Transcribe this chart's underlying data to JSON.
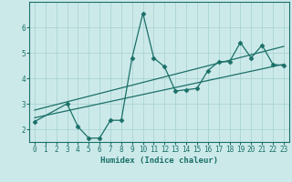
{
  "xlabel": "Humidex (Indice chaleur)",
  "xlim": [
    -0.5,
    23.5
  ],
  "ylim": [
    1.5,
    7.0
  ],
  "yticks": [
    2,
    3,
    4,
    5,
    6
  ],
  "xticks": [
    0,
    1,
    2,
    3,
    4,
    5,
    6,
    7,
    8,
    9,
    10,
    11,
    12,
    13,
    14,
    15,
    16,
    17,
    18,
    19,
    20,
    21,
    22,
    23
  ],
  "bg_color": "#cce9e9",
  "line_color": "#1a7068",
  "grid_color": "#aad4d4",
  "line1_x": [
    0,
    3,
    4,
    5,
    6,
    7,
    8,
    9,
    10,
    11,
    12,
    13,
    14,
    15,
    16,
    17,
    18,
    19,
    20,
    21,
    22,
    23
  ],
  "line1_y": [
    2.3,
    3.0,
    2.1,
    1.65,
    1.65,
    2.35,
    2.35,
    4.8,
    6.55,
    4.8,
    4.45,
    3.5,
    3.55,
    3.6,
    4.3,
    4.65,
    4.65,
    5.4,
    4.8,
    5.3,
    4.55,
    4.5
  ],
  "line2_x": [
    0,
    23
  ],
  "line2_y": [
    2.45,
    4.55
  ],
  "line3_x": [
    0,
    23
  ],
  "line3_y": [
    2.75,
    5.25
  ],
  "marker": "D",
  "markersize": 2.5,
  "linewidth": 0.9
}
